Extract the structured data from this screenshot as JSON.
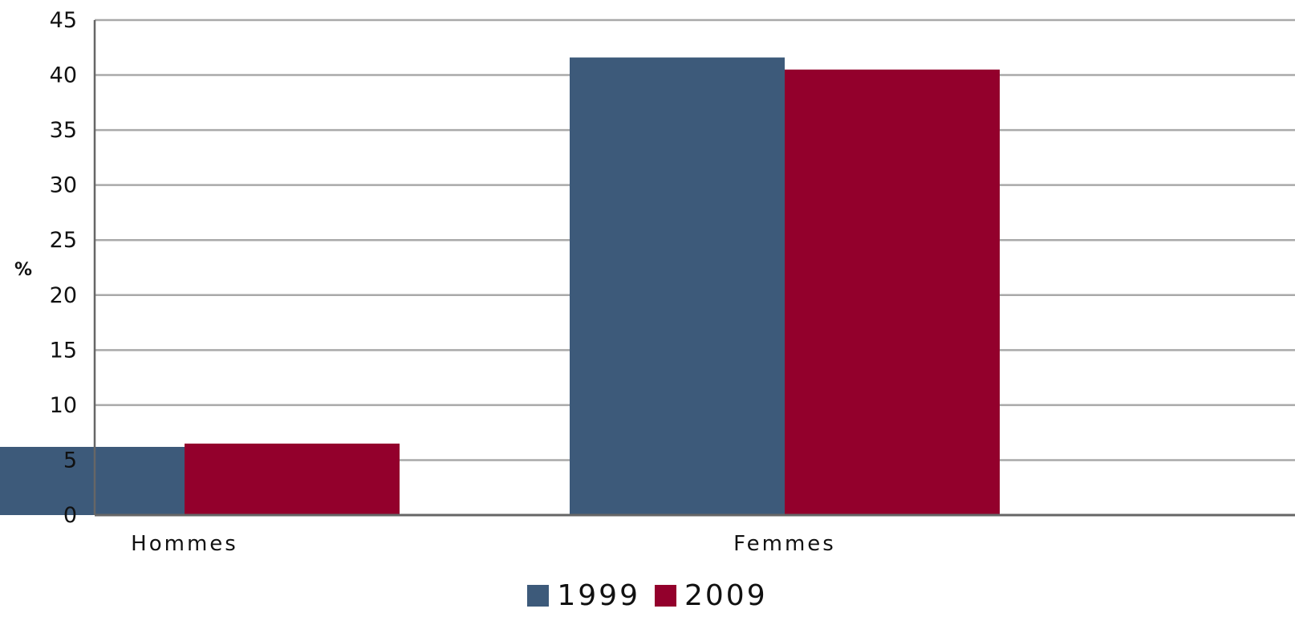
{
  "chart_data": {
    "type": "bar",
    "title": "",
    "xlabel": "",
    "ylabel": "%",
    "categories": [
      "Hommes",
      "Femmes"
    ],
    "series": [
      {
        "name": "1999",
        "color": "#3d5a7a",
        "values": [
          6.2,
          41.6
        ]
      },
      {
        "name": "2009",
        "color": "#93002c",
        "values": [
          6.5,
          40.5
        ]
      }
    ],
    "ylim": [
      0,
      45
    ],
    "yticks": [
      0,
      5,
      10,
      15,
      20,
      25,
      30,
      35,
      40,
      45
    ],
    "grid": true,
    "legend": "bottom-center"
  }
}
